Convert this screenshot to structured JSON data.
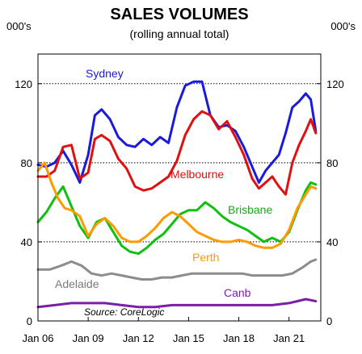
{
  "chart_data": {
    "type": "line",
    "title": "SALES VOLUMES",
    "subtitle": "(rolling annual total)",
    "y_unit_left": "000's",
    "y_unit_right": "000's",
    "ylim": [
      0,
      135
    ],
    "xlim": [
      2006.0,
      2022.9
    ],
    "y_ticks": [
      0,
      40,
      80,
      120
    ],
    "y_tick_labels": [
      "0",
      "40",
      "80",
      "120"
    ],
    "x_ticks": [
      2006,
      2009,
      2012,
      2015,
      2018,
      2021
    ],
    "x_tick_labels": [
      "Jan 06",
      "Jan 09",
      "Jan 12",
      "Jan 15",
      "Jan 18",
      "Jan 21"
    ],
    "grid": "horizontal dotted",
    "source": "Source: CoreLogic",
    "series": [
      {
        "name": "Sydney",
        "color": "#1a1adc",
        "x": [
          2006.0,
          2006.5,
          2007.0,
          2007.5,
          2008.0,
          2008.5,
          2009.0,
          2009.4,
          2009.8,
          2010.3,
          2010.8,
          2011.3,
          2011.8,
          2012.3,
          2012.8,
          2013.3,
          2013.8,
          2014.3,
          2014.8,
          2015.3,
          2015.8,
          2016.3,
          2016.8,
          2017.3,
          2017.8,
          2018.3,
          2018.8,
          2019.2,
          2019.6,
          2020.0,
          2020.4,
          2020.8,
          2021.2,
          2021.6,
          2022.0,
          2022.3,
          2022.6
        ],
        "values": [
          79,
          78,
          80,
          86,
          79,
          70,
          84,
          104,
          107,
          102,
          93,
          89,
          88,
          92,
          89,
          93,
          90,
          108,
          119,
          121,
          121,
          104,
          98,
          99,
          96,
          88,
          78,
          70,
          76,
          80,
          84,
          95,
          108,
          111,
          115,
          112,
          96
        ]
      },
      {
        "name": "Melbourne",
        "color": "#e01010",
        "x": [
          2006.0,
          2006.5,
          2007.0,
          2007.5,
          2008.0,
          2008.5,
          2009.0,
          2009.4,
          2009.8,
          2010.3,
          2010.8,
          2011.3,
          2011.8,
          2012.3,
          2012.8,
          2013.3,
          2013.8,
          2014.3,
          2014.8,
          2015.3,
          2015.8,
          2016.3,
          2016.8,
          2017.3,
          2017.8,
          2018.3,
          2018.8,
          2019.2,
          2019.6,
          2020.0,
          2020.4,
          2020.8,
          2021.2,
          2021.6,
          2022.0,
          2022.3,
          2022.6
        ],
        "values": [
          73,
          73,
          76,
          88,
          89,
          72,
          75,
          92,
          94,
          91,
          82,
          77,
          68,
          66,
          67,
          70,
          73,
          81,
          94,
          102,
          106,
          104,
          97,
          101,
          93,
          84,
          72,
          67,
          70,
          73,
          68,
          64,
          80,
          89,
          96,
          102,
          95
        ]
      },
      {
        "name": "Brisbane",
        "color": "#10c010",
        "x": [
          2006.0,
          2006.5,
          2007.0,
          2007.5,
          2008.0,
          2008.5,
          2009.0,
          2009.5,
          2010.0,
          2010.5,
          2011.0,
          2011.5,
          2012.0,
          2012.5,
          2013.0,
          2013.5,
          2014.0,
          2014.5,
          2015.0,
          2015.5,
          2016.0,
          2016.5,
          2017.0,
          2017.5,
          2018.0,
          2018.5,
          2019.0,
          2019.5,
          2020.0,
          2020.5,
          2021.0,
          2021.5,
          2022.0,
          2022.3,
          2022.6
        ],
        "values": [
          50,
          55,
          62,
          68,
          58,
          48,
          42,
          50,
          52,
          45,
          38,
          35,
          34,
          37,
          41,
          44,
          49,
          54,
          56,
          56,
          60,
          57,
          53,
          50,
          48,
          46,
          43,
          40,
          42,
          40,
          45,
          56,
          66,
          70,
          69
        ]
      },
      {
        "name": "Perth",
        "color": "#ff9a00",
        "x": [
          2006.0,
          2006.4,
          2006.8,
          2007.2,
          2007.6,
          2008.0,
          2008.5,
          2009.0,
          2009.5,
          2010.0,
          2010.5,
          2011.0,
          2011.5,
          2012.0,
          2012.5,
          2013.0,
          2013.5,
          2014.0,
          2014.5,
          2015.0,
          2015.5,
          2016.0,
          2016.5,
          2017.0,
          2017.5,
          2018.0,
          2018.5,
          2019.0,
          2019.5,
          2020.0,
          2020.5,
          2021.0,
          2021.5,
          2022.0,
          2022.3,
          2022.6
        ],
        "values": [
          76,
          80,
          70,
          62,
          57,
          56,
          53,
          43,
          49,
          52,
          48,
          42,
          40,
          40,
          43,
          47,
          52,
          55,
          53,
          49,
          45,
          43,
          41,
          40,
          40,
          41,
          40,
          38,
          37,
          37,
          39,
          46,
          57,
          64,
          68,
          67
        ]
      },
      {
        "name": "Adelaide",
        "color": "#8c8c8c",
        "x": [
          2006.0,
          2006.7,
          2007.4,
          2008.0,
          2008.6,
          2009.2,
          2009.8,
          2010.4,
          2011.0,
          2011.6,
          2012.2,
          2012.8,
          2013.4,
          2014.0,
          2014.6,
          2015.2,
          2015.8,
          2016.4,
          2017.0,
          2017.6,
          2018.2,
          2018.8,
          2019.4,
          2020.0,
          2020.6,
          2021.2,
          2021.8,
          2022.3,
          2022.6
        ],
        "values": [
          26,
          26,
          28,
          30,
          28,
          24,
          23,
          24,
          23,
          22,
          21,
          21,
          22,
          22,
          23,
          24,
          24,
          24,
          24,
          24,
          24,
          23,
          23,
          23,
          23,
          24,
          27,
          30,
          31
        ]
      },
      {
        "name": "Canb",
        "color": "#7b1fa8",
        "x": [
          2006.0,
          2007.0,
          2008.0,
          2009.0,
          2010.0,
          2011.0,
          2012.0,
          2013.0,
          2014.0,
          2015.0,
          2016.0,
          2017.0,
          2018.0,
          2019.0,
          2020.0,
          2021.0,
          2021.5,
          2022.0,
          2022.6
        ],
        "values": [
          7,
          8,
          9,
          9,
          9,
          8,
          7,
          7,
          8,
          8,
          8,
          8,
          8,
          8,
          8,
          9,
          10,
          11,
          10
        ]
      }
    ]
  }
}
